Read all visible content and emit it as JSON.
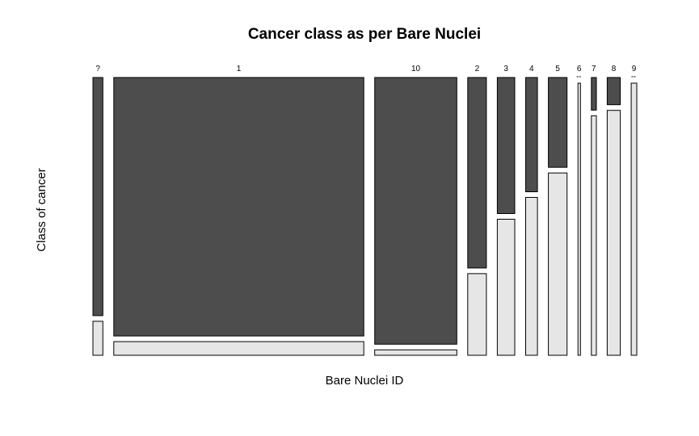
{
  "chart_data": {
    "type": "mosaic",
    "title": "Cancer class as per Bare Nuclei",
    "xlabel": "Bare Nuclei ID",
    "ylabel": "Class of cancer",
    "categories": [
      "?",
      "1",
      "10",
      "2",
      "3",
      "4",
      "5",
      "6",
      "7",
      "8",
      "9"
    ],
    "counts": [
      16,
      402,
      132,
      30,
      28,
      19,
      30,
      4,
      8,
      21,
      9
    ],
    "series": [
      {
        "values": [
          0.875,
          0.95,
          0.98,
          0.7,
          0.5,
          0.42,
          0.33,
          0.0,
          0.12,
          0.1,
          0.0
        ],
        "color": "#4d4d4d"
      },
      {
        "values": [
          0.125,
          0.05,
          0.02,
          0.3,
          0.5,
          0.58,
          0.67,
          1.0,
          0.88,
          0.9,
          1.0
        ],
        "color": "#e6e6e6"
      }
    ],
    "grid": false,
    "legend": "none"
  }
}
